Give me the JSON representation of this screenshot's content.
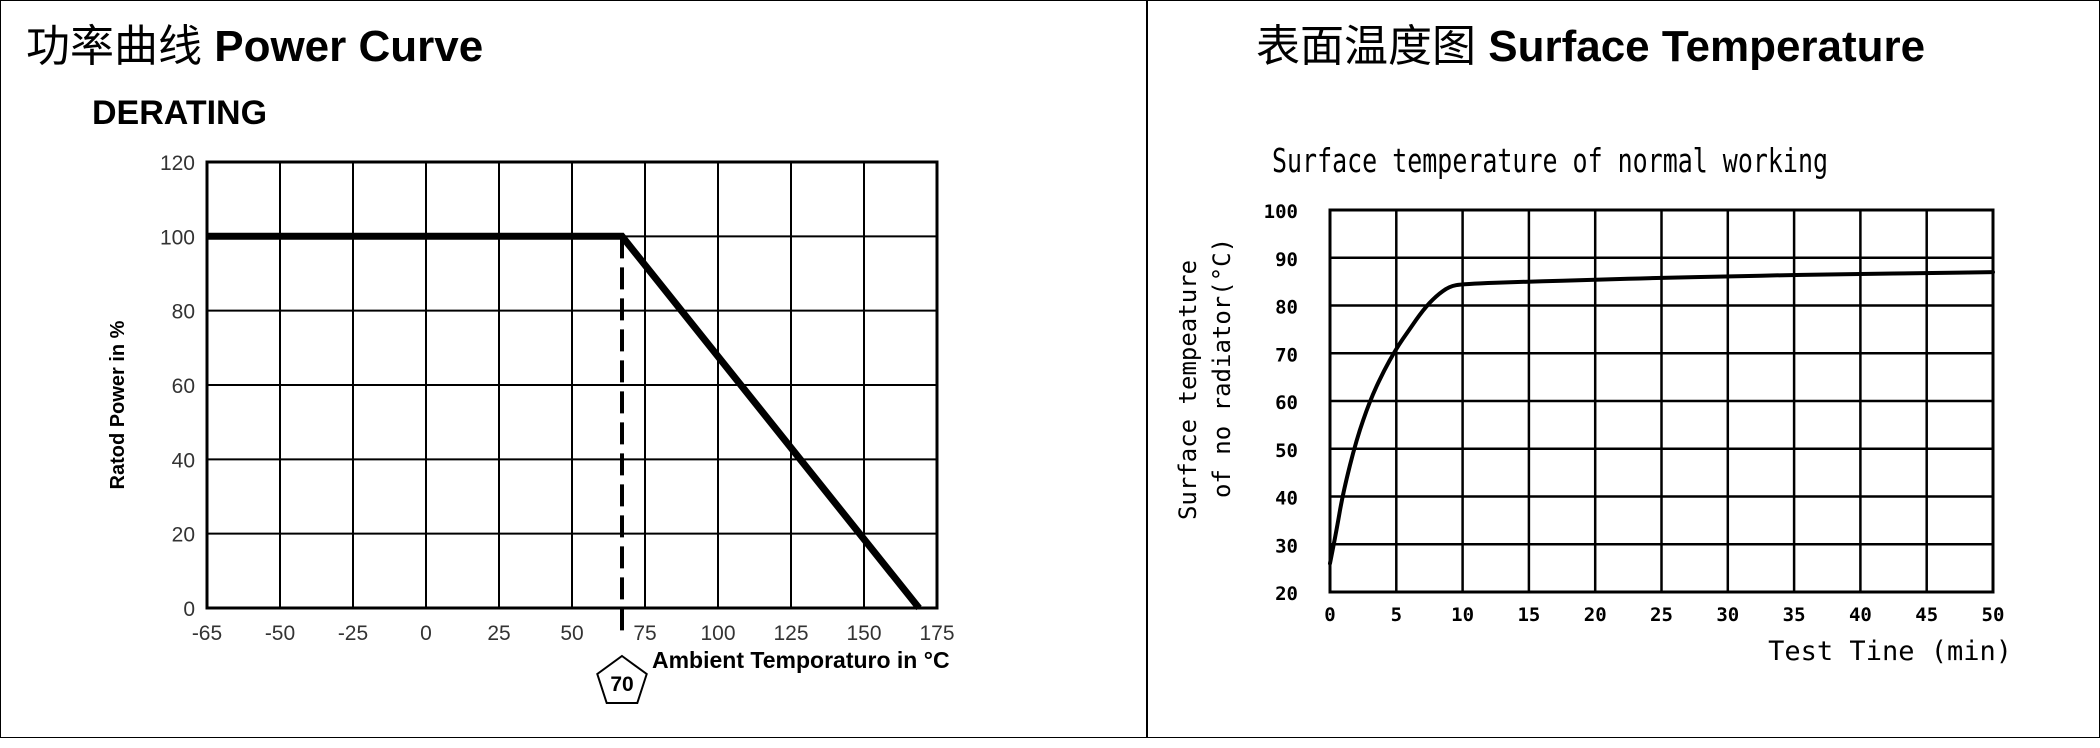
{
  "panels": {
    "left_title_cn": "功率曲线",
    "left_title_en": "Power Curve",
    "right_title_cn": "表面温度图",
    "right_title_en": "Surface Temperature"
  },
  "chart_data": [
    {
      "type": "line",
      "title": "DERATING",
      "xlabel": "Ambient Temporaturo in °C",
      "ylabel": "Ratod Power in %",
      "x_tick_labels": [
        "-65",
        "-50",
        "-25",
        "0",
        "25",
        "50",
        "75",
        "100",
        "125",
        "150",
        "175"
      ],
      "y_tick_labels": [
        "0",
        "20",
        "40",
        "60",
        "80",
        "100",
        "120"
      ],
      "xlim": [
        -65,
        175
      ],
      "ylim": [
        0,
        120
      ],
      "grid": true,
      "series": [
        {
          "x": [
            -65,
            70,
            170
          ],
          "y": [
            100,
            100,
            0
          ]
        }
      ],
      "annotations": [
        {
          "type": "vline-dashed",
          "x": 70,
          "label": "70"
        }
      ]
    },
    {
      "type": "line",
      "title": "Surface temperature of normal working",
      "xlabel": "Test Tine (min)",
      "ylabel_line1": "Surface tempeature",
      "ylabel_line2": "of no radiator(°C)",
      "x_tick_labels": [
        "0",
        "5",
        "10",
        "15",
        "20",
        "25",
        "30",
        "35",
        "40",
        "45",
        "50"
      ],
      "y_tick_labels": [
        "20",
        "30",
        "40",
        "50",
        "60",
        "70",
        "80",
        "90",
        "100"
      ],
      "xlim": [
        0,
        50
      ],
      "ylim": [
        20,
        100
      ],
      "grid": true,
      "series": [
        {
          "x": [
            0,
            0.5,
            1,
            2,
            3,
            4,
            5,
            6,
            7,
            8,
            9,
            10,
            15,
            20,
            25,
            30,
            35,
            40,
            45,
            50
          ],
          "y": [
            26,
            33,
            41,
            52,
            60,
            66,
            71,
            75,
            79,
            82,
            84,
            84.5,
            85,
            85.4,
            85.8,
            86.1,
            86.4,
            86.6,
            86.8,
            87
          ]
        }
      ]
    }
  ]
}
